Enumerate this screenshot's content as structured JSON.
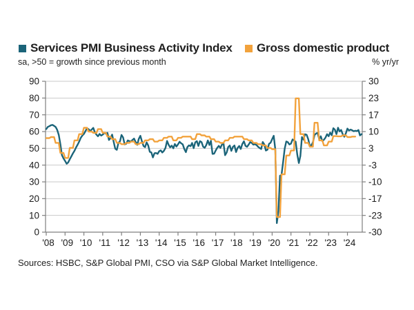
{
  "legend": [
    {
      "label": "Services PMI Business Activity Index",
      "color": "#1b6479"
    },
    {
      "label": "Gross domestic product",
      "color": "#f2a23c"
    }
  ],
  "subtitle_left": "sa, >50 = growth since previous month",
  "subtitle_right": "% yr/yr",
  "source": "Sources: HSBC, S&P Global PMI, CSO via S&P Global Market Intelligence.",
  "chart_data": {
    "type": "line",
    "grid": true,
    "legend_position": "top",
    "x_tick_labels": [
      "'08",
      "'09",
      "'10",
      "'11",
      "'12",
      "'13",
      "'14",
      "'15",
      "'16",
      "'17",
      "'18",
      "'19",
      "'20",
      "'21",
      "'22",
      "'23",
      "'24"
    ],
    "left_axis": {
      "range": [
        0,
        90
      ],
      "ticks": [
        90,
        80,
        70,
        60,
        50,
        40,
        30,
        20,
        10,
        0
      ],
      "subtitle": "sa, >50 = growth since previous month"
    },
    "right_axis": {
      "range": [
        -30,
        30
      ],
      "tick_labels": [
        "30",
        "23",
        "17",
        "10",
        "3",
        "-3",
        "-10",
        "-17",
        "-23",
        "-30"
      ],
      "label": "% yr/yr"
    },
    "series": [
      {
        "name": "Services PMI Business Activity Index",
        "axis": "left",
        "color": "#1b6479",
        "frequency": "monthly",
        "start": "2008-01",
        "values": [
          61.5,
          62.8,
          63.2,
          63.8,
          64.0,
          63.4,
          62.8,
          61.0,
          58.0,
          52.5,
          46.0,
          44.0,
          42.5,
          40.8,
          41.6,
          43.5,
          45.2,
          47.0,
          48.5,
          50.5,
          52.2,
          54.0,
          56.2,
          57.6,
          58.6,
          60.2,
          62.0,
          61.4,
          60.4,
          61.2,
          62.2,
          59.5,
          58.2,
          57.2,
          58.6,
          57.6,
          58.2,
          59.2,
          58.8,
          59.2,
          55.0,
          56.1,
          58.2,
          53.8,
          49.8,
          49.1,
          53.2,
          54.2,
          58.0,
          56.5,
          52.3,
          52.8,
          54.7,
          54.3,
          54.2,
          55.0,
          55.8,
          53.8,
          52.1,
          55.6,
          57.5,
          54.2,
          51.4,
          50.7,
          53.6,
          51.7,
          47.9,
          47.6,
          44.6,
          47.1,
          47.2,
          46.7,
          48.3,
          48.8,
          47.5,
          48.5,
          50.2,
          54.4,
          52.2,
          50.6,
          51.6,
          50.0,
          52.6,
          51.1,
          52.4,
          53.9,
          53.0,
          52.4,
          49.6,
          47.7,
          50.8,
          51.8,
          51.3,
          53.2,
          50.1,
          53.6,
          54.3,
          51.4,
          54.3,
          53.7,
          51.0,
          50.3,
          51.9,
          54.7,
          52.0,
          54.5,
          46.7,
          46.8,
          48.7,
          50.3,
          51.5,
          50.2,
          52.2,
          53.1,
          45.9,
          47.5,
          50.7,
          51.7,
          48.5,
          50.9,
          51.7,
          47.8,
          50.3,
          51.4,
          49.6,
          52.6,
          54.2,
          51.5,
          50.9,
          52.2,
          53.7,
          53.2,
          52.2,
          52.5,
          52.0,
          51.0,
          50.2,
          49.6,
          53.8,
          52.4,
          48.7,
          49.2,
          52.7,
          53.3,
          55.5,
          57.5,
          49.3,
          5.4,
          12.6,
          33.7,
          34.2,
          41.8,
          49.8,
          54.1,
          53.7,
          52.3,
          52.8,
          55.3,
          54.6,
          54.0,
          46.4,
          41.2,
          45.4,
          56.7,
          55.2,
          58.4,
          58.1,
          55.5,
          51.5,
          51.8,
          53.6,
          57.9,
          58.9,
          59.2,
          55.5,
          57.2,
          54.3,
          55.1,
          56.4,
          58.5,
          57.2,
          59.4,
          57.8,
          62.0,
          61.2,
          58.5,
          62.3,
          60.1,
          61.0,
          58.4,
          56.9,
          59.0,
          61.8,
          60.6,
          61.2,
          60.8,
          60.2,
          60.5,
          60.3,
          60.9,
          57.7,
          58.5
        ]
      },
      {
        "name": "Gross domestic product",
        "axis": "right",
        "color": "#f2a23c",
        "frequency": "quarterly",
        "start": "2008-Q1",
        "values": [
          7.4,
          7.8,
          5.5,
          1.5,
          -0.5,
          3.5,
          6.5,
          9.0,
          11.5,
          10.0,
          9.5,
          11.0,
          9.5,
          8.0,
          7.0,
          5.5,
          5.0,
          5.5,
          6.0,
          5.0,
          5.5,
          6.5,
          7.0,
          6.0,
          6.5,
          7.5,
          8.0,
          6.5,
          7.5,
          8.0,
          8.0,
          7.0,
          9.0,
          8.5,
          8.0,
          7.0,
          6.0,
          5.5,
          6.5,
          7.5,
          8.0,
          8.0,
          7.0,
          6.5,
          5.5,
          5.0,
          4.5,
          3.5,
          3.0,
          -24.0,
          -7.0,
          0.5,
          2.5,
          23.2,
          9.0,
          5.5,
          4.0,
          13.5,
          6.5,
          4.5,
          6.0,
          8.2,
          8.1,
          8.5,
          7.8,
          8.0
        ]
      }
    ],
    "style": {
      "gridline_color": "#c9c9c9",
      "axis_color": "#7f7f7f",
      "text_color": "#1a1a1a"
    }
  }
}
